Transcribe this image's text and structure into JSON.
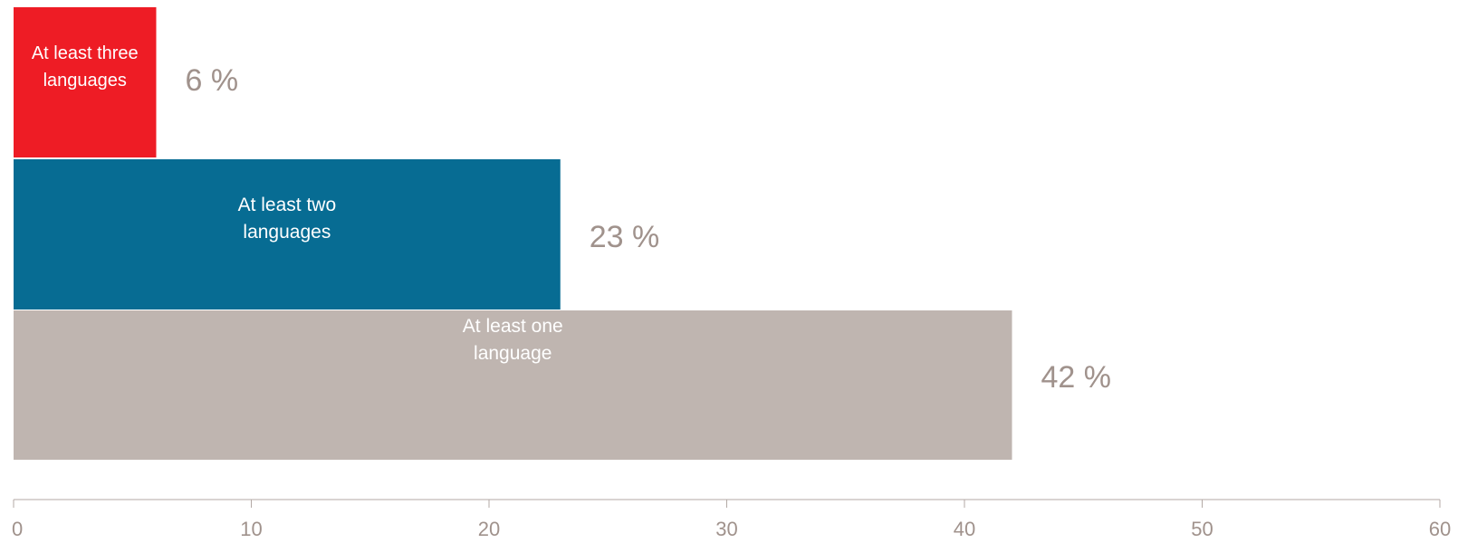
{
  "chart_data": {
    "type": "bar",
    "orientation": "horizontal",
    "categories": [
      "At least three languages",
      "At least two languages",
      "At least one language"
    ],
    "category_lines": [
      [
        "At least three",
        "languages"
      ],
      [
        "At least two",
        "languages"
      ],
      [
        "At least one",
        "language"
      ]
    ],
    "values": [
      6,
      23,
      42
    ],
    "value_labels": [
      "6 %",
      "23 %",
      "42 %"
    ],
    "colors": [
      "#ee1c25",
      "#076c93",
      "#bfb5b0"
    ],
    "xlim": [
      0,
      60
    ],
    "x_ticks": [
      0,
      10,
      20,
      30,
      40,
      50,
      60
    ],
    "x_tick_labels": [
      "0",
      "10",
      "20",
      "30",
      "40",
      "50",
      "60"
    ],
    "axis_color": "#b3a9a5",
    "value_label_color": "#a0928c",
    "bar_label_color": "#ffffff"
  }
}
